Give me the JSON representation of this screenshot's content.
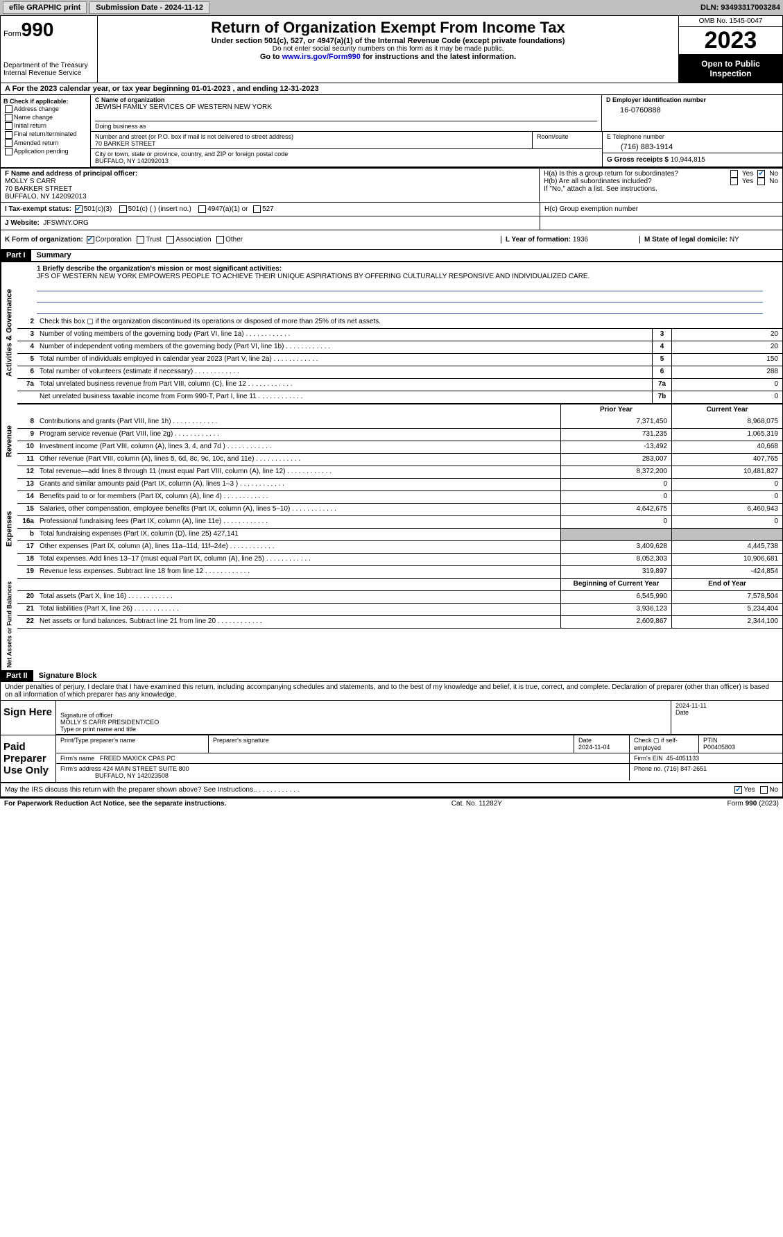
{
  "topbar": {
    "efile": "efile GRAPHIC print",
    "submission_label": "Submission Date - 2024-11-12",
    "dln": "DLN: 93493317003284"
  },
  "header": {
    "form_word": "Form",
    "form_num": "990",
    "title": "Return of Organization Exempt From Income Tax",
    "sub1": "Under section 501(c), 527, or 4947(a)(1) of the Internal Revenue Code (except private foundations)",
    "sub2": "Do not enter social security numbers on this form as it may be made public.",
    "sub3_pre": "Go to ",
    "sub3_link": "www.irs.gov/Form990",
    "sub3_post": " for instructions and the latest information.",
    "dept": "Department of the Treasury\nInternal Revenue Service",
    "omb": "OMB No. 1545-0047",
    "year": "2023",
    "open": "Open to Public Inspection"
  },
  "periodA": "A For the 2023 calendar year, or tax year beginning 01-01-2023   , and ending 12-31-2023",
  "boxB": {
    "label": "B Check if applicable:",
    "opts": [
      "Address change",
      "Name change",
      "Initial return",
      "Final return/terminated",
      "Amended return",
      "Application pending"
    ]
  },
  "boxC": {
    "name_lbl": "C Name of organization",
    "name": "JEWISH FAMILY SERVICES OF WESTERN NEW YORK",
    "dba_lbl": "Doing business as",
    "street_lbl": "Number and street (or P.O. box if mail is not delivered to street address)",
    "street": "70 BARKER STREET",
    "room_lbl": "Room/suite",
    "city_lbl": "City or town, state or province, country, and ZIP or foreign postal code",
    "city": "BUFFALO, NY  142092013"
  },
  "boxD": {
    "lbl": "D Employer identification number",
    "val": "16-0760888"
  },
  "boxE": {
    "lbl": "E Telephone number",
    "val": "(716) 883-1914"
  },
  "boxG": {
    "lbl": "G Gross receipts $",
    "val": "10,944,815"
  },
  "boxF": {
    "lbl": "F Name and address of principal officer:",
    "name": "MOLLY S CARR",
    "street": "70 BARKER STREET",
    "city": "BUFFALO, NY  142092013"
  },
  "boxH": {
    "a": "H(a)  Is this a group return for subordinates?",
    "b": "H(b)  Are all subordinates included?",
    "b_note": "If \"No,\" attach a list. See instructions.",
    "c": "H(c)  Group exemption number",
    "yes": "Yes",
    "no": "No"
  },
  "boxI": {
    "lbl": "I   Tax-exempt status:",
    "o1": "501(c)(3)",
    "o2": "501(c) (  ) (insert no.)",
    "o3": "4947(a)(1) or",
    "o4": "527"
  },
  "boxJ": {
    "lbl": "J   Website:",
    "val": "JFSWNY.ORG"
  },
  "boxK": {
    "lbl": "K Form of organization:",
    "o1": "Corporation",
    "o2": "Trust",
    "o3": "Association",
    "o4": "Other"
  },
  "boxL": {
    "lbl": "L Year of formation:",
    "val": "1936"
  },
  "boxM": {
    "lbl": "M State of legal domicile:",
    "val": "NY"
  },
  "part1": {
    "hdr": "Part I",
    "title": "Summary"
  },
  "mission": {
    "q": "1   Briefly describe the organization's mission or most significant activities:",
    "text": "JFS OF WESTERN NEW YORK EMPOWERS PEOPLE TO ACHIEVE THEIR UNIQUE ASPIRATIONS BY OFFERING CULTURALLY RESPONSIVE AND INDIVIDUALIZED CARE."
  },
  "sections": {
    "gov": "Activities & Governance",
    "rev": "Revenue",
    "exp": "Expenses",
    "net": "Net Assets or Fund Balances"
  },
  "lines_gov": [
    {
      "n": "2",
      "d": "Check this box ▢ if the organization discontinued its operations or disposed of more than 25% of its net assets."
    },
    {
      "n": "3",
      "d": "Number of voting members of the governing body (Part VI, line 1a)",
      "b": "3",
      "v": "20"
    },
    {
      "n": "4",
      "d": "Number of independent voting members of the governing body (Part VI, line 1b)",
      "b": "4",
      "v": "20"
    },
    {
      "n": "5",
      "d": "Total number of individuals employed in calendar year 2023 (Part V, line 2a)",
      "b": "5",
      "v": "150"
    },
    {
      "n": "6",
      "d": "Total number of volunteers (estimate if necessary)",
      "b": "6",
      "v": "288"
    },
    {
      "n": "7a",
      "d": "Total unrelated business revenue from Part VIII, column (C), line 12",
      "b": "7a",
      "v": "0"
    },
    {
      "n": "",
      "d": "Net unrelated business taxable income from Form 990-T, Part I, line 11",
      "b": "7b",
      "v": "0"
    }
  ],
  "col_hdrs": {
    "prior": "Prior Year",
    "current": "Current Year",
    "beg": "Beginning of Current Year",
    "end": "End of Year"
  },
  "lines_rev": [
    {
      "n": "8",
      "d": "Contributions and grants (Part VIII, line 1h)",
      "p": "7,371,450",
      "c": "8,968,075"
    },
    {
      "n": "9",
      "d": "Program service revenue (Part VIII, line 2g)",
      "p": "731,235",
      "c": "1,065,319"
    },
    {
      "n": "10",
      "d": "Investment income (Part VIII, column (A), lines 3, 4, and 7d )",
      "p": "-13,492",
      "c": "40,668"
    },
    {
      "n": "11",
      "d": "Other revenue (Part VIII, column (A), lines 5, 6d, 8c, 9c, 10c, and 11e)",
      "p": "283,007",
      "c": "407,765"
    },
    {
      "n": "12",
      "d": "Total revenue—add lines 8 through 11 (must equal Part VIII, column (A), line 12)",
      "p": "8,372,200",
      "c": "10,481,827"
    }
  ],
  "lines_exp": [
    {
      "n": "13",
      "d": "Grants and similar amounts paid (Part IX, column (A), lines 1–3 )",
      "p": "0",
      "c": "0"
    },
    {
      "n": "14",
      "d": "Benefits paid to or for members (Part IX, column (A), line 4)",
      "p": "0",
      "c": "0"
    },
    {
      "n": "15",
      "d": "Salaries, other compensation, employee benefits (Part IX, column (A), lines 5–10)",
      "p": "4,642,675",
      "c": "6,460,943"
    },
    {
      "n": "16a",
      "d": "Professional fundraising fees (Part IX, column (A), line 11e)",
      "p": "0",
      "c": "0"
    },
    {
      "n": "b",
      "d": "Total fundraising expenses (Part IX, column (D), line 25) 427,141",
      "grey": true
    },
    {
      "n": "17",
      "d": "Other expenses (Part IX, column (A), lines 11a–11d, 11f–24e)",
      "p": "3,409,628",
      "c": "4,445,738"
    },
    {
      "n": "18",
      "d": "Total expenses. Add lines 13–17 (must equal Part IX, column (A), line 25)",
      "p": "8,052,303",
      "c": "10,906,681"
    },
    {
      "n": "19",
      "d": "Revenue less expenses. Subtract line 18 from line 12",
      "p": "319,897",
      "c": "-424,854"
    }
  ],
  "lines_net": [
    {
      "n": "20",
      "d": "Total assets (Part X, line 16)",
      "p": "6,545,990",
      "c": "7,578,504"
    },
    {
      "n": "21",
      "d": "Total liabilities (Part X, line 26)",
      "p": "3,936,123",
      "c": "5,234,404"
    },
    {
      "n": "22",
      "d": "Net assets or fund balances. Subtract line 21 from line 20",
      "p": "2,609,867",
      "c": "2,344,100"
    }
  ],
  "part2": {
    "hdr": "Part II",
    "title": "Signature Block"
  },
  "perjury": "Under penalties of perjury, I declare that I have examined this return, including accompanying schedules and statements, and to the best of my knowledge and belief, it is true, correct, and complete. Declaration of preparer (other than officer) is based on all information of which preparer has any knowledge.",
  "sign": {
    "here": "Sign Here",
    "sig_lbl": "Signature of officer",
    "name": "MOLLY S CARR  PRESIDENT/CEO",
    "name_lbl": "Type or print name and title",
    "date_lbl": "Date",
    "date": "2024-11-11"
  },
  "paid": {
    "hdr": "Paid Preparer Use Only",
    "prep_name_lbl": "Print/Type preparer's name",
    "prep_sig_lbl": "Preparer's signature",
    "date_lbl": "Date",
    "date": "2024-11-04",
    "self_lbl": "Check ▢ if self-employed",
    "ptin_lbl": "PTIN",
    "ptin": "P00405803",
    "firm_name_lbl": "Firm's name",
    "firm_name": "FREED MAXICK CPAS PC",
    "firm_ein_lbl": "Firm's EIN",
    "firm_ein": "45-4051133",
    "firm_addr_lbl": "Firm's address",
    "firm_addr": "424 MAIN STREET SUITE 800",
    "firm_city": "BUFFALO, NY  142023508",
    "phone_lbl": "Phone no.",
    "phone": "(716) 847-2651"
  },
  "discuss": "May the IRS discuss this return with the preparer shown above? See Instructions.",
  "footer": {
    "left": "For Paperwork Reduction Act Notice, see the separate instructions.",
    "mid": "Cat. No. 11282Y",
    "right": "Form 990 (2023)"
  }
}
